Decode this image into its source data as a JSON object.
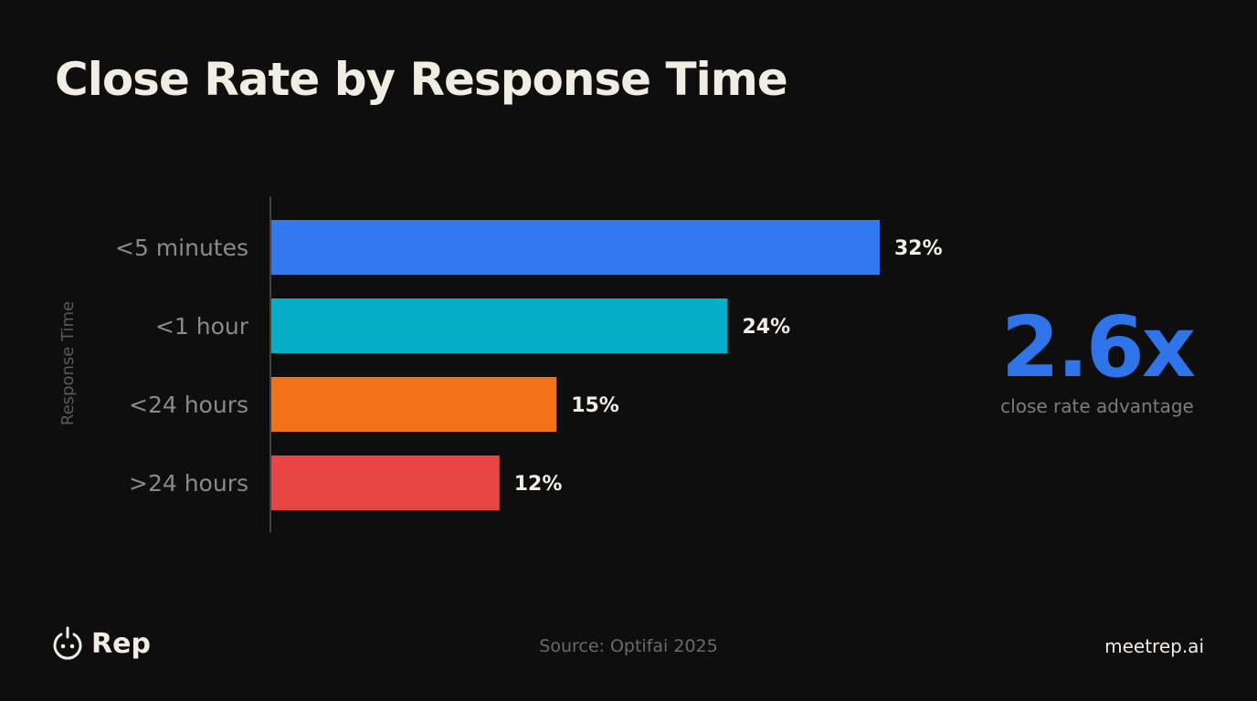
{
  "title": "Close Rate by Response Time",
  "chart_data": {
    "type": "bar",
    "orientation": "horizontal",
    "categories": [
      "<5 minutes",
      "<1 hour",
      "<24 hours",
      ">24 hours"
    ],
    "values": [
      32,
      24,
      15,
      12
    ],
    "data_labels": [
      "32%",
      "24%",
      "15%",
      "12%"
    ],
    "colors": [
      "#3478f0",
      "#06aec8",
      "#f07118",
      "#e84444"
    ],
    "ylabel": "Response Time",
    "xlabel": "",
    "xlim": [
      0,
      32
    ],
    "grid": false
  },
  "callout": {
    "value": "2.6x",
    "label": "close rate advantage",
    "color": "#2f74e8"
  },
  "footer": {
    "brand": "Rep",
    "source": "Source: Optifai 2025",
    "site": "meetrep.ai"
  }
}
